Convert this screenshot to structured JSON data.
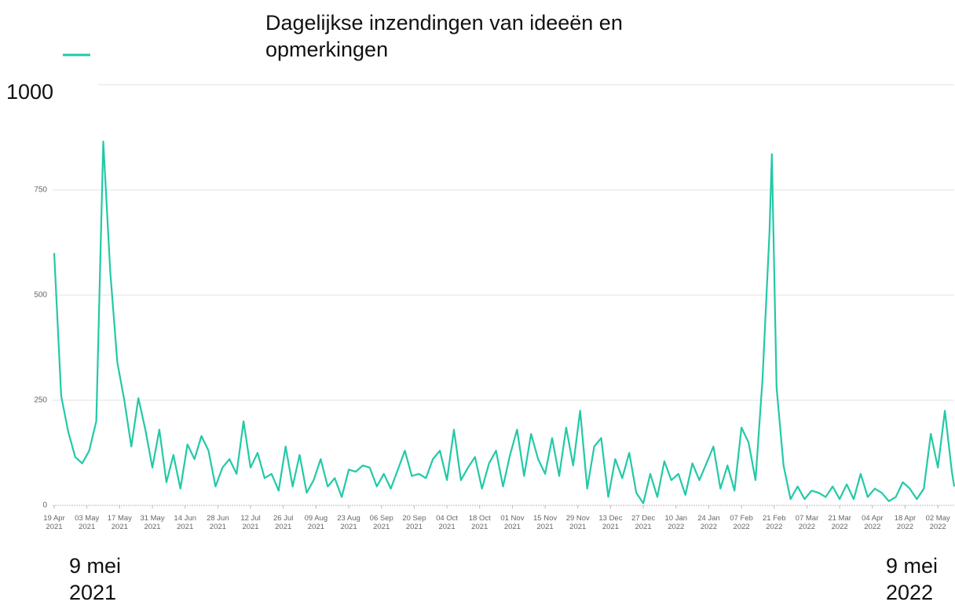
{
  "chart_data": {
    "type": "line",
    "x": [
      "2021-04-19",
      "2021-04-22",
      "2021-04-25",
      "2021-04-28",
      "2021-05-01",
      "2021-05-04",
      "2021-05-07",
      "2021-05-10",
      "2021-05-13",
      "2021-05-16",
      "2021-05-19",
      "2021-05-22",
      "2021-05-25",
      "2021-05-28",
      "2021-05-31",
      "2021-06-03",
      "2021-06-06",
      "2021-06-09",
      "2021-06-12",
      "2021-06-15",
      "2021-06-18",
      "2021-06-21",
      "2021-06-24",
      "2021-06-27",
      "2021-06-30",
      "2021-07-03",
      "2021-07-06",
      "2021-07-09",
      "2021-07-12",
      "2021-07-15",
      "2021-07-18",
      "2021-07-21",
      "2021-07-24",
      "2021-07-27",
      "2021-07-30",
      "2021-08-02",
      "2021-08-05",
      "2021-08-08",
      "2021-08-11",
      "2021-08-14",
      "2021-08-17",
      "2021-08-20",
      "2021-08-23",
      "2021-08-26",
      "2021-08-29",
      "2021-09-01",
      "2021-09-04",
      "2021-09-07",
      "2021-09-10",
      "2021-09-13",
      "2021-09-16",
      "2021-09-19",
      "2021-09-22",
      "2021-09-25",
      "2021-09-28",
      "2021-10-01",
      "2021-10-04",
      "2021-10-07",
      "2021-10-10",
      "2021-10-13",
      "2021-10-16",
      "2021-10-19",
      "2021-10-22",
      "2021-10-25",
      "2021-10-28",
      "2021-10-31",
      "2021-11-03",
      "2021-11-06",
      "2021-11-09",
      "2021-11-12",
      "2021-11-15",
      "2021-11-18",
      "2021-11-21",
      "2021-11-24",
      "2021-11-27",
      "2021-11-30",
      "2021-12-03",
      "2021-12-06",
      "2021-12-09",
      "2021-12-12",
      "2021-12-15",
      "2021-12-18",
      "2021-12-21",
      "2021-12-24",
      "2021-12-27",
      "2021-12-30",
      "2022-01-02",
      "2022-01-05",
      "2022-01-08",
      "2022-01-11",
      "2022-01-14",
      "2022-01-17",
      "2022-01-20",
      "2022-01-23",
      "2022-01-26",
      "2022-01-29",
      "2022-02-01",
      "2022-02-04",
      "2022-02-07",
      "2022-02-10",
      "2022-02-13",
      "2022-02-16",
      "2022-02-19",
      "2022-02-20",
      "2022-02-22",
      "2022-02-25",
      "2022-02-28",
      "2022-03-03",
      "2022-03-06",
      "2022-03-09",
      "2022-03-12",
      "2022-03-15",
      "2022-03-18",
      "2022-03-21",
      "2022-03-24",
      "2022-03-27",
      "2022-03-30",
      "2022-04-02",
      "2022-04-05",
      "2022-04-08",
      "2022-04-11",
      "2022-04-14",
      "2022-04-17",
      "2022-04-20",
      "2022-04-23",
      "2022-04-26",
      "2022-04-29",
      "2022-05-02",
      "2022-05-05",
      "2022-05-08",
      "2022-05-09"
    ],
    "series": [
      {
        "name": "Dagelijkse inzendingen van ideeën en opmerkingen",
        "color": "#22c9a7",
        "values": [
          600,
          260,
          175,
          115,
          100,
          130,
          200,
          865,
          555,
          340,
          250,
          140,
          255,
          180,
          90,
          180,
          55,
          120,
          40,
          145,
          110,
          165,
          130,
          45,
          90,
          110,
          75,
          200,
          90,
          125,
          65,
          75,
          35,
          140,
          45,
          120,
          30,
          60,
          110,
          45,
          65,
          20,
          85,
          80,
          95,
          90,
          45,
          75,
          40,
          85,
          130,
          70,
          75,
          65,
          110,
          130,
          60,
          180,
          60,
          90,
          115,
          40,
          100,
          130,
          45,
          120,
          180,
          70,
          170,
          110,
          75,
          160,
          70,
          185,
          95,
          225,
          40,
          140,
          160,
          20,
          110,
          65,
          125,
          30,
          5,
          75,
          20,
          105,
          60,
          75,
          25,
          100,
          60,
          100,
          140,
          40,
          95,
          35,
          185,
          150,
          60,
          300,
          650,
          835,
          280,
          95,
          15,
          45,
          15,
          35,
          30,
          20,
          45,
          15,
          50,
          15,
          75,
          20,
          40,
          30,
          10,
          20,
          55,
          40,
          15,
          40,
          170,
          90,
          225,
          80,
          45
        ]
      }
    ],
    "xlim": [
      "2021-04-19",
      "2022-05-09"
    ],
    "xticks": [
      {
        "value": "2021-04-19",
        "label": "19 Apr 2021"
      },
      {
        "value": "2021-05-03",
        "label": "03 May 2021"
      },
      {
        "value": "2021-05-17",
        "label": "17 May 2021"
      },
      {
        "value": "2021-05-31",
        "label": "31 May 2021"
      },
      {
        "value": "2021-06-14",
        "label": "14 Jun 2021"
      },
      {
        "value": "2021-06-28",
        "label": "28 Jun 2021"
      },
      {
        "value": "2021-07-12",
        "label": "12 Jul 2021"
      },
      {
        "value": "2021-07-26",
        "label": "26 Jul 2021"
      },
      {
        "value": "2021-08-09",
        "label": "09 Aug 2021"
      },
      {
        "value": "2021-08-23",
        "label": "23 Aug 2021"
      },
      {
        "value": "2021-09-06",
        "label": "06 Sep 2021"
      },
      {
        "value": "2021-09-20",
        "label": "20 Sep 2021"
      },
      {
        "value": "2021-10-04",
        "label": "04 Oct 2021"
      },
      {
        "value": "2021-10-18",
        "label": "18 Oct 2021"
      },
      {
        "value": "2021-11-01",
        "label": "01 Nov 2021"
      },
      {
        "value": "2021-11-15",
        "label": "15 Nov 2021"
      },
      {
        "value": "2021-11-29",
        "label": "29 Nov 2021"
      },
      {
        "value": "2021-12-13",
        "label": "13 Dec 2021"
      },
      {
        "value": "2021-12-27",
        "label": "27 Dec 2021"
      },
      {
        "value": "2022-01-10",
        "label": "10 Jan 2022"
      },
      {
        "value": "2022-01-24",
        "label": "24 Jan 2022"
      },
      {
        "value": "2022-02-07",
        "label": "07 Feb 2022"
      },
      {
        "value": "2022-02-21",
        "label": "21 Feb 2022"
      },
      {
        "value": "2022-03-07",
        "label": "07 Mar 2022"
      },
      {
        "value": "2022-03-21",
        "label": "21 Mar 2022"
      },
      {
        "value": "2022-04-04",
        "label": "04 Apr 2022"
      },
      {
        "value": "2022-04-18",
        "label": "18 Apr 2022"
      },
      {
        "value": "2022-05-02",
        "label": "02 May 2022"
      }
    ],
    "ylim": [
      0,
      1000
    ],
    "yticks": [
      0,
      250,
      500,
      750,
      1000
    ],
    "grid": true,
    "annotations": [
      "9 mei 2021",
      "9 mei 2022"
    ]
  }
}
